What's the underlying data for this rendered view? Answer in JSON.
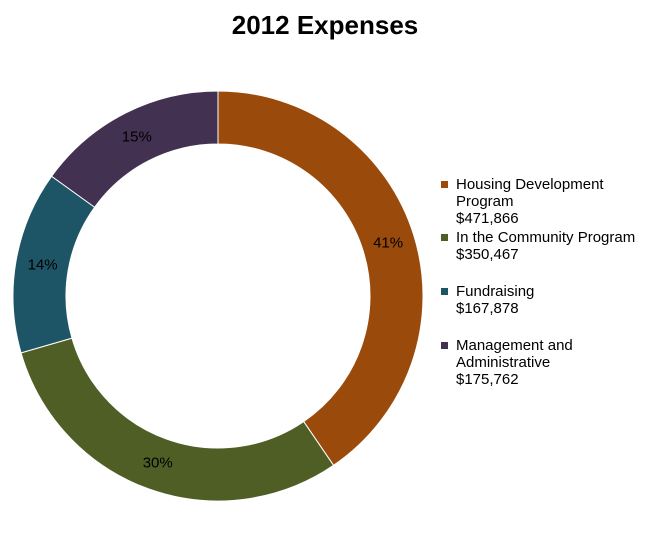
{
  "chart_data": {
    "type": "pie",
    "variant": "donut",
    "title": "2012 Expenses",
    "slices": [
      {
        "name_lines": [
          "Housing Development",
          "Program"
        ],
        "amount": "$471,866",
        "value": 471866,
        "percent_label": "41%",
        "color": "#9a4a0b"
      },
      {
        "name_lines": [
          "In the Community Program"
        ],
        "amount": "$350,467",
        "value": 350467,
        "percent_label": "30%",
        "color": "#4f5e25"
      },
      {
        "name_lines": [
          "Fundraising"
        ],
        "amount": "$167,878",
        "value": 167878,
        "percent_label": "14%",
        "color": "#1e5566"
      },
      {
        "name_lines": [
          "Management and",
          "Administrative"
        ],
        "amount": "$175,762",
        "value": 175762,
        "percent_label": "15%",
        "color": "#433151"
      }
    ],
    "legend_position": "right"
  }
}
